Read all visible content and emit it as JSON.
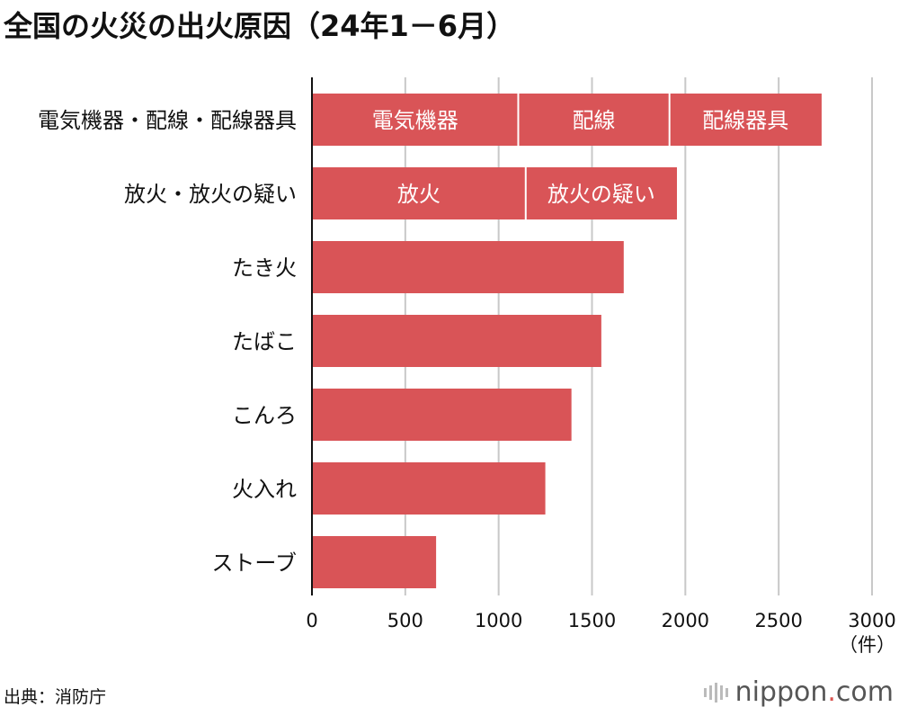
{
  "chart_data": {
    "type": "bar",
    "orientation": "horizontal",
    "stacked_segments": true,
    "title": "全国の火災の出火原因（24年1－6月）",
    "unit": "（件）",
    "xlim": [
      0,
      3000
    ],
    "ticks": [
      "0",
      "500",
      "1000",
      "1500",
      "2000",
      "2500",
      "3000"
    ],
    "tick_values": [
      0,
      500,
      1000,
      1500,
      2000,
      2500,
      3000
    ],
    "grid": true,
    "bar_color": "#d95457",
    "categories": [
      "電気機器・配線・配線器具",
      "放火・放火の疑い",
      "たき火",
      "たばこ",
      "こんろ",
      "火入れ",
      "ストーブ"
    ],
    "bars": [
      {
        "label": "電気機器・配線・配線器具",
        "segments": [
          {
            "name": "電気機器",
            "value": 1105
          },
          {
            "name": "配線",
            "value": 810
          },
          {
            "name": "配線器具",
            "value": 815
          }
        ]
      },
      {
        "label": "放火・放火の疑い",
        "segments": [
          {
            "name": "放火",
            "value": 1145
          },
          {
            "name": "放火の疑い",
            "value": 810
          }
        ]
      },
      {
        "label": "たき火",
        "segments": [
          {
            "name": "",
            "value": 1670
          }
        ]
      },
      {
        "label": "たばこ",
        "segments": [
          {
            "name": "",
            "value": 1550
          }
        ]
      },
      {
        "label": "こんろ",
        "segments": [
          {
            "name": "",
            "value": 1390
          }
        ]
      },
      {
        "label": "火入れ",
        "segments": [
          {
            "name": "",
            "value": 1250
          }
        ]
      },
      {
        "label": "ストーブ",
        "segments": [
          {
            "name": "",
            "value": 665
          }
        ]
      }
    ]
  },
  "source": "出典：消防庁",
  "brand": {
    "name": "nippon",
    "dot": ".",
    "tld": "com"
  }
}
